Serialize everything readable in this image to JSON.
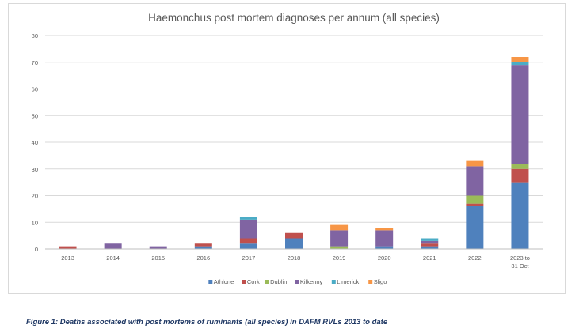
{
  "chart_data": {
    "type": "bar",
    "stacked": true,
    "title": "Haemonchus post mortem diagnoses per annum (all species)",
    "xlabel": "",
    "ylabel": "",
    "ylim": [
      0,
      80
    ],
    "yticks": [
      0,
      10,
      20,
      30,
      40,
      50,
      60,
      70,
      80
    ],
    "grid": true,
    "legend_position": "bottom",
    "categories": [
      "2013",
      "2014",
      "2015",
      "2016",
      "2017",
      "2018",
      "2019",
      "2020",
      "2021",
      "2022",
      "2023 to 31 Oct"
    ],
    "series": [
      {
        "name": "Athlone",
        "color": "#4f81bd",
        "values": [
          0,
          0,
          0,
          1,
          2,
          4,
          0,
          1,
          1,
          16,
          25
        ]
      },
      {
        "name": "Cork",
        "color": "#c0504d",
        "values": [
          1,
          0,
          0,
          1,
          2,
          2,
          0,
          0,
          1,
          1,
          5
        ]
      },
      {
        "name": "Dublin",
        "color": "#9bbb59",
        "values": [
          0,
          0,
          0,
          0,
          0,
          0,
          1,
          0,
          0,
          3,
          2
        ]
      },
      {
        "name": "Kilkenny",
        "color": "#8064a2",
        "values": [
          0,
          2,
          1,
          0,
          7,
          0,
          6,
          6,
          1,
          11,
          37
        ]
      },
      {
        "name": "Limerick",
        "color": "#4bacc6",
        "values": [
          0,
          0,
          0,
          0,
          1,
          0,
          0,
          0,
          1,
          0,
          1
        ]
      },
      {
        "name": "Sligo",
        "color": "#f79646",
        "values": [
          0,
          0,
          0,
          0,
          0,
          0,
          2,
          1,
          0,
          2,
          2
        ]
      }
    ]
  },
  "caption": "Figure 1:  Deaths associated with post mortems  of ruminants (all species) in DAFM RVLs 2013 to date"
}
